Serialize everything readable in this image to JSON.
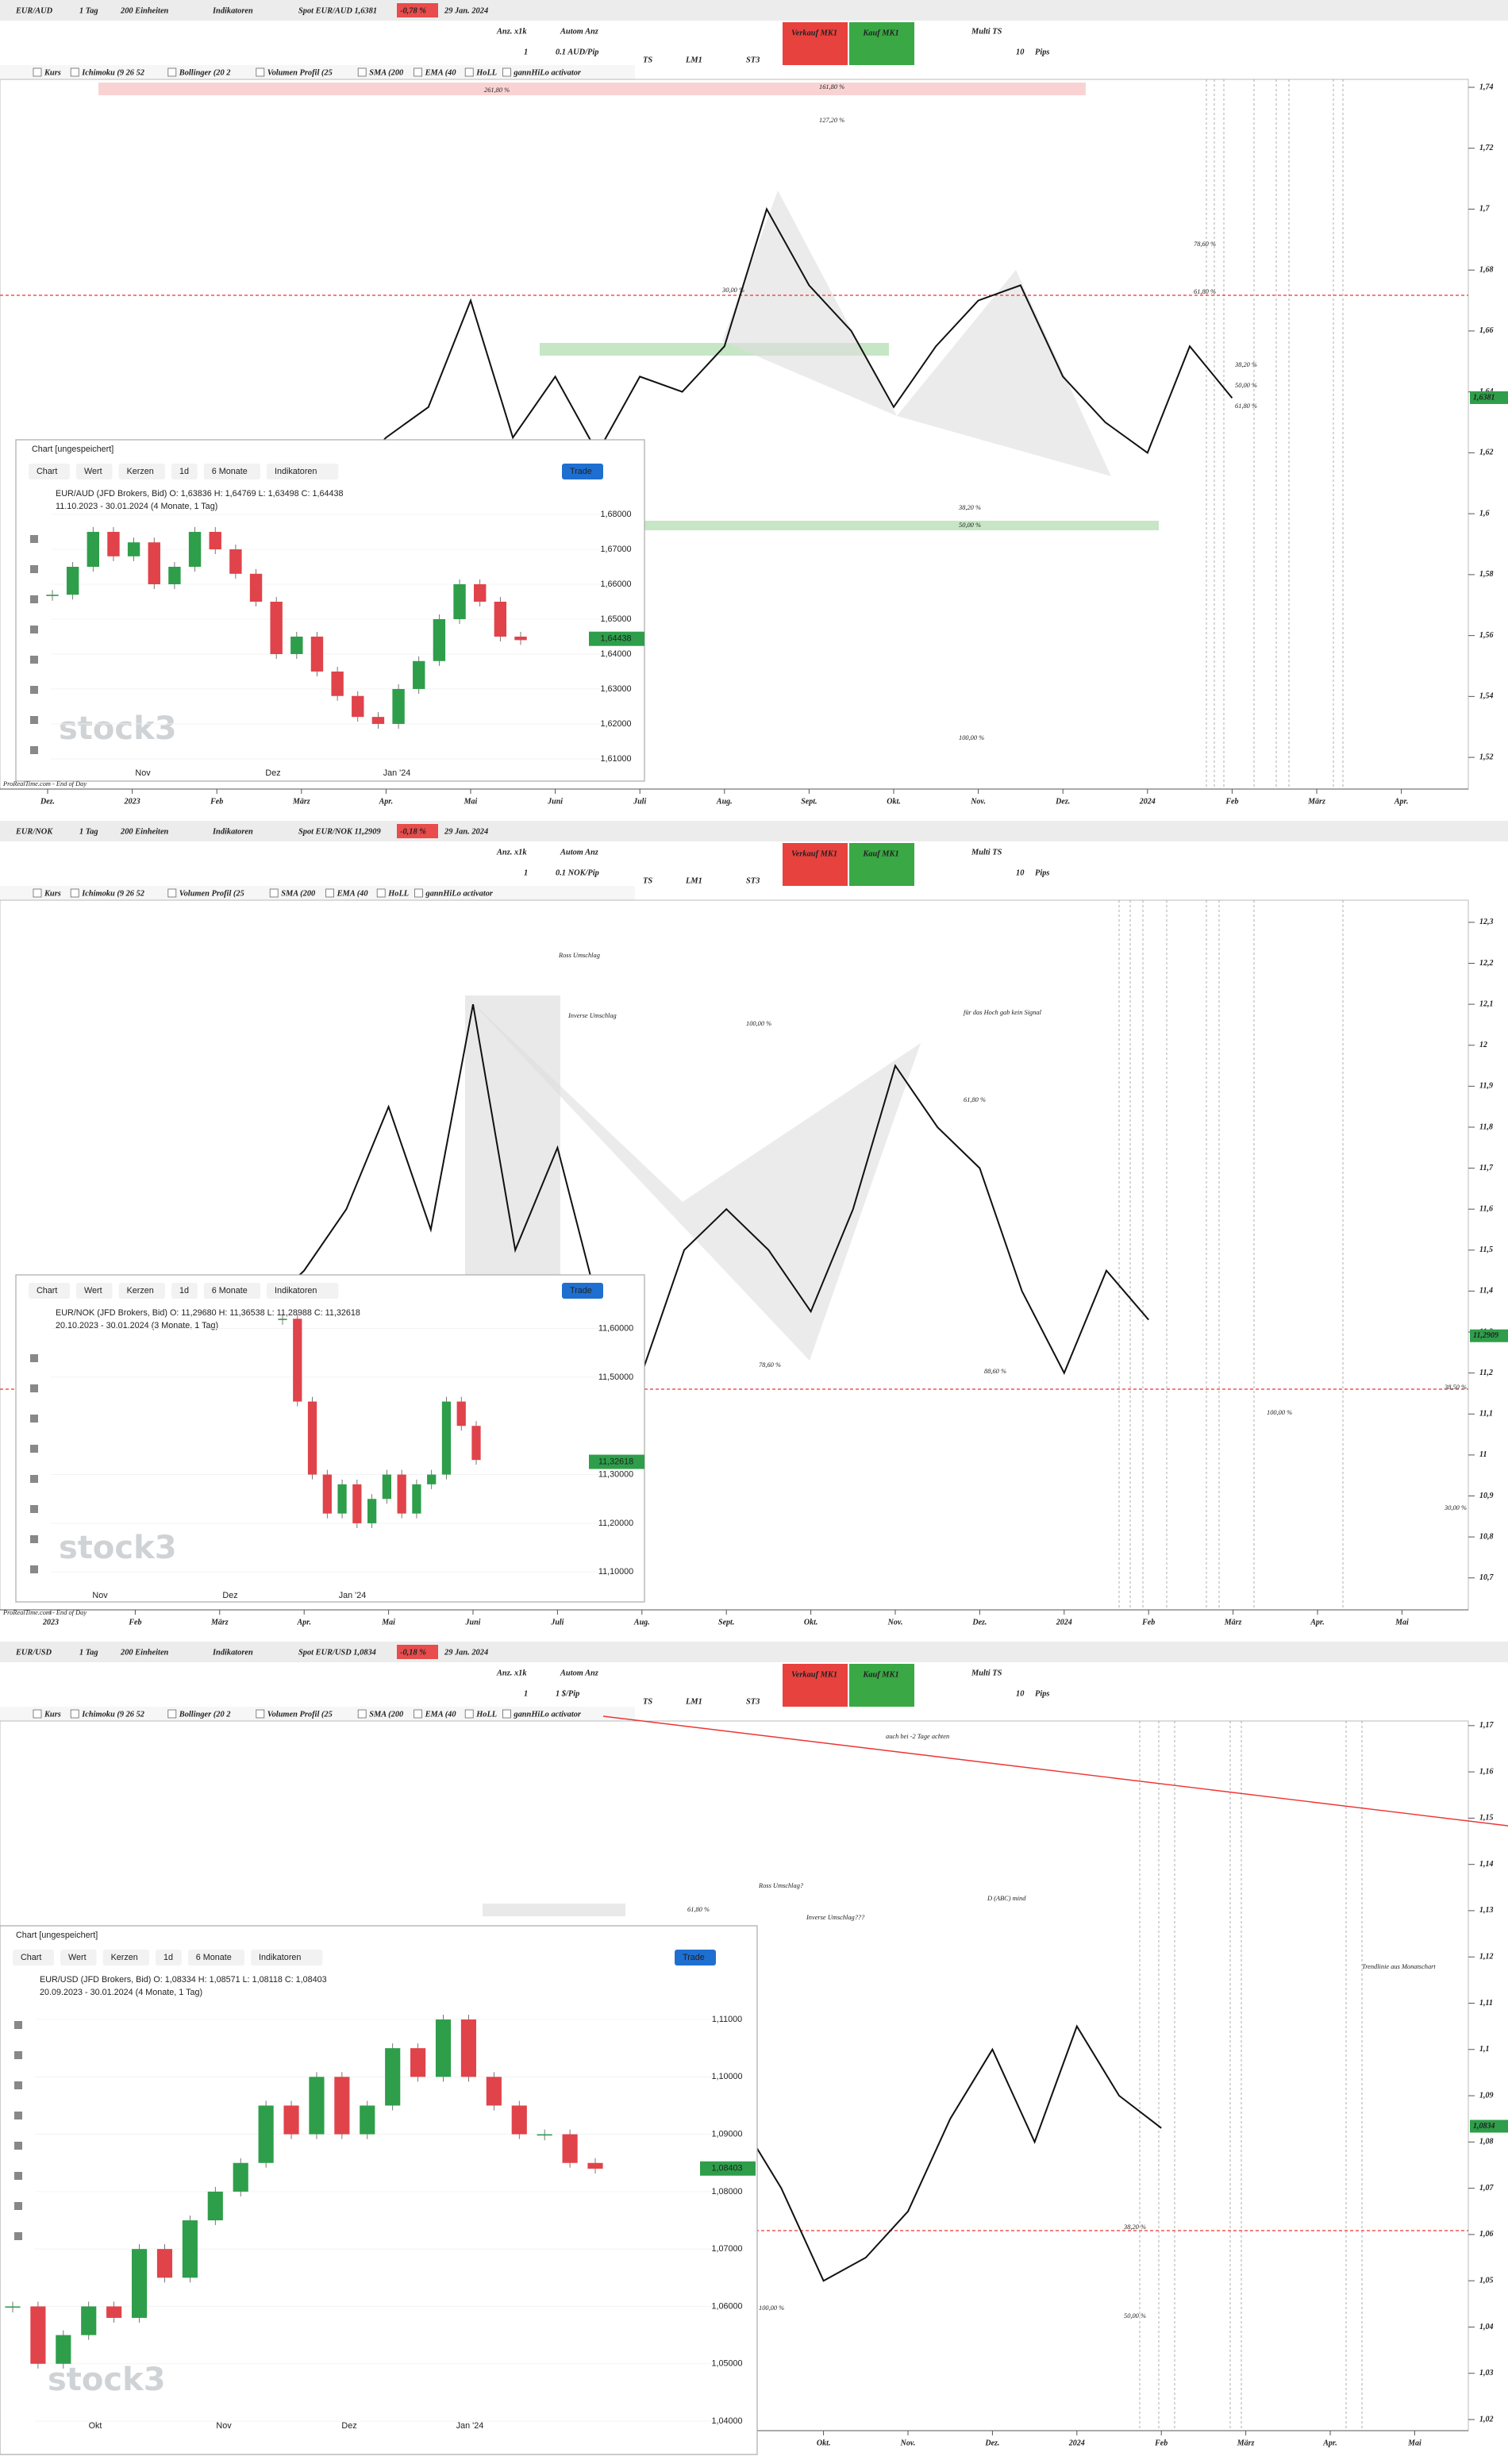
{
  "panels": [
    {
      "toolbar": {
        "symbol": "EUR/AUD",
        "interval": "1 Tag",
        "units": "200 Einheiten",
        "indicators": "Indikatoren",
        "spot": "Spot EUR/AUD 1,6381",
        "change": "-0,78 %",
        "date": "29 Jan. 2024"
      },
      "trade": [
        "Anz. x1k",
        "Autom Anz",
        "1",
        "0.1 AUD/Pip",
        "TS",
        "LM1",
        "ST3",
        "Verkauf MK1",
        "Kauf MK1",
        "Multi TS",
        "10",
        "Pips"
      ],
      "indicators": [
        "Kurs",
        "Ichimoku (9 26 52",
        "Bollinger (20 2",
        "Volumen Profil (25",
        "SMA (200",
        "EMA (40",
        "HoLL",
        "gannHiLo activator"
      ],
      "chart": {
        "ylim": [
          1.5096,
          1.7426
        ],
        "yticks": [
          {
            "value": 1.74,
            "label": "1,74"
          },
          {
            "value": 1.72,
            "label": "1,72"
          },
          {
            "value": 1.7,
            "label": "1,7"
          },
          {
            "value": 1.68,
            "label": "1,68"
          },
          {
            "value": 1.66,
            "label": "1,66"
          },
          {
            "value": 1.64,
            "label": "1,64"
          },
          {
            "value": 1.62,
            "label": "1,62"
          },
          {
            "value": 1.6,
            "label": "1,6"
          },
          {
            "value": 1.58,
            "label": "1,58"
          },
          {
            "value": 1.56,
            "label": "1,56"
          },
          {
            "value": 1.54,
            "label": "1,54"
          },
          {
            "value": 1.52,
            "label": "1,52"
          }
        ],
        "xlabels": [
          "Dez.",
          "2023",
          "Feb",
          "März",
          "Apr.",
          "Mai",
          "Juni",
          "Juli",
          "Aug.",
          "Sept.",
          "Okt.",
          "Nov.",
          "Dez.",
          "2024",
          "Feb",
          "März",
          "Apr."
        ],
        "close": [
          1.555,
          1.545,
          1.54,
          1.56,
          1.575,
          1.59,
          1.6,
          1.61,
          1.625,
          1.635,
          1.67,
          1.625,
          1.645,
          1.62,
          1.645,
          1.64,
          1.655,
          1.7,
          1.675,
          1.66,
          1.635,
          1.655,
          1.67,
          1.675,
          1.645,
          1.63,
          1.62,
          1.655,
          1.638,
          null,
          null,
          null,
          null
        ],
        "last": {
          "value": 1.6381,
          "label": "1,6381"
        },
        "annotations": [
          "30,00 %",
          "78,60 %",
          "61,80 %",
          "38,20 %",
          "50,00 %",
          "61,80 %",
          "38,20 %",
          "50,00 %",
          "100,00 %",
          "261,80 %",
          "161,80 %",
          "127,20 %"
        ],
        "footer": "ProRealTime.com - End of Day"
      },
      "inset": {
        "title": "Chart [ungespeichert]",
        "buttons": [
          "Chart",
          "Wert",
          "Kerzen",
          "1d",
          "6 Monate",
          "Indikatoren",
          "Trade"
        ],
        "info": "EUR/AUD (JFD Brokers, Bid) O: 1,63836 H: 1,64769 L: 1,63498 C: 1,64438",
        "range": "11.10.2023 - 30.01.2024 (4 Monate, 1 Tag)",
        "ylim": [
          1.6068,
          1.6841
        ],
        "yticks": [
          {
            "value": 1.68,
            "label": "1,68000"
          },
          {
            "value": 1.67,
            "label": "1,67000"
          },
          {
            "value": 1.66,
            "label": "1,66000"
          },
          {
            "value": 1.65,
            "label": "1,65000"
          },
          {
            "value": 1.64,
            "label": "1,64000"
          },
          {
            "value": 1.63,
            "label": "1,63000"
          },
          {
            "value": 1.62,
            "label": "1,62000"
          },
          {
            "value": 1.61,
            "label": "1,61000"
          }
        ],
        "xlabels": [
          "Nov",
          "Dez",
          "Jan '24"
        ],
        "close": [
          1.657,
          1.665,
          1.675,
          1.668,
          1.672,
          1.66,
          1.665,
          1.675,
          1.67,
          1.663,
          1.655,
          1.64,
          1.645,
          1.635,
          1.628,
          1.622,
          1.62,
          1.63,
          1.638,
          1.65,
          1.66,
          1.655,
          1.645,
          1.644
        ],
        "last": {
          "value": 1.64438,
          "label": "1,64438"
        },
        "watermark": "stock3"
      }
    },
    {
      "toolbar": {
        "symbol": "EUR/NOK",
        "interval": "1 Tag",
        "units": "200 Einheiten",
        "indicators": "Indikatoren",
        "spot": "Spot EUR/NOK 11,2909",
        "change": "-0,18 %",
        "date": "29 Jan. 2024"
      },
      "trade": [
        "Anz. x1k",
        "Autom Anz",
        "1",
        "0.1 NOK/Pip",
        "TS",
        "LM1",
        "ST3",
        "Verkauf MK1",
        "Kauf MK1",
        "Multi TS",
        "10",
        "Pips"
      ],
      "indicators": [
        "Kurs",
        "Ichimoku (9 26 52",
        "Volumen Profil (25",
        "SMA (200",
        "EMA (40",
        "HoLL",
        "gannHiLo activator"
      ],
      "chart": {
        "ylim": [
          10.622,
          12.354
        ],
        "yticks": [
          {
            "value": 12.3,
            "label": "12,3"
          },
          {
            "value": 12.2,
            "label": "12,2"
          },
          {
            "value": 12.1,
            "label": "12,1"
          },
          12,
          {
            "value": 11.9,
            "label": "11,9"
          },
          {
            "value": 11.8,
            "label": "11,8"
          },
          {
            "value": 11.7,
            "label": "11,7"
          },
          {
            "value": 11.6,
            "label": "11,6"
          },
          {
            "value": 11.5,
            "label": "11,5"
          },
          {
            "value": 11.4,
            "label": "11,4"
          },
          {
            "value": 11.3,
            "label": "11,3"
          },
          {
            "value": 11.2,
            "label": "11,2"
          },
          {
            "value": 11.1,
            "label": "11,1"
          },
          11,
          {
            "value": 10.9,
            "label": "10,9"
          },
          {
            "value": 10.8,
            "label": "10,8"
          },
          {
            "value": 10.7,
            "label": "10,7"
          }
        ],
        "xlabels": [
          "2023",
          "Feb",
          "März",
          "Apr.",
          "Mai",
          "Juni",
          "Juli",
          "Aug.",
          "Sept.",
          "Okt.",
          "Nov.",
          "Dez.",
          "2024",
          "Feb",
          "März",
          "Apr.",
          "Mai"
        ],
        "close": [
          11.2,
          11.3,
          11.2,
          11.3,
          11.4,
          11.35,
          11.45,
          11.6,
          11.85,
          11.55,
          12.1,
          11.5,
          11.75,
          11.35,
          11.2,
          11.5,
          11.6,
          11.5,
          11.35,
          11.6,
          11.95,
          11.8,
          11.7,
          11.4,
          11.2,
          11.45,
          11.33,
          null,
          null,
          null,
          null,
          null,
          null
        ],
        "last": {
          "value": 11.2909,
          "label": "11,2909"
        },
        "annotations": [
          "Ross Umschlag",
          "Inverse Umschlag",
          "für das Hoch gab kein Signal",
          "100,00 %",
          "61,80 %",
          "88,60 %",
          "78,60 %",
          "38,50 %",
          "100,00 %",
          "30,00 %"
        ],
        "footer": "ProRealTime.com - End of Day"
      },
      "inset": {
        "buttons": [
          "Chart",
          "Wert",
          "Kerzen",
          "1d",
          "6 Monate",
          "Indikatoren",
          "Trade"
        ],
        "info": "EUR/NOK (JFD Brokers, Bid) O: 11,29680 H: 11,36538 L: 11,28988 C: 11,32618",
        "range": "20.10.2023 - 30.01.2024 (3 Monate, 1 Tag)",
        "ylim": [
          11.045,
          11.6645
        ],
        "yticks": [
          {
            "value": 11.6,
            "label": "11,60000"
          },
          {
            "value": 11.5,
            "label": "11,50000"
          },
          {
            "value": 11.3,
            "label": "11,30000"
          },
          {
            "value": 11.2,
            "label": "11,20000"
          },
          {
            "value": 11.1,
            "label": "11,10000"
          }
        ],
        "xlabels": [
          "Nov",
          "Dez",
          "Jan '24"
        ],
        "close": [
          11.62,
          11.45,
          11.3,
          11.22,
          11.28,
          11.2,
          11.25,
          11.3,
          11.22,
          11.28,
          11.3,
          11.45,
          11.4,
          11.33
        ],
        "last": {
          "value": 11.32618,
          "label": "11,32618"
        },
        "watermark": "stock3"
      }
    },
    {
      "toolbar": {
        "symbol": "EUR/USD",
        "interval": "1 Tag",
        "units": "200 Einheiten",
        "indicators": "Indikatoren",
        "spot": "Spot EUR/USD 1,0834",
        "change": "-0,18 %",
        "date": "29 Jan. 2024"
      },
      "trade": [
        "Anz. x1k",
        "Autom Anz",
        "1",
        "1 $/Pip",
        "TS",
        "LM1",
        "ST3",
        "Verkauf MK1",
        "Kauf MK1",
        "Multi TS",
        "10",
        "Pips"
      ],
      "indicators": [
        "Kurs",
        "Ichimoku (9 26 52",
        "Bollinger (20 2",
        "Volumen Profil (25",
        "SMA (200",
        "EMA (40",
        "HoLL",
        "gannHiLo activator"
      ],
      "chart": {
        "ylim": [
          1.0176,
          1.171
        ],
        "yticks": [
          {
            "value": 1.17,
            "label": "1,17"
          },
          {
            "value": 1.16,
            "label": "1,16"
          },
          {
            "value": 1.15,
            "label": "1,15"
          },
          {
            "value": 1.14,
            "label": "1,14"
          },
          {
            "value": 1.13,
            "label": "1,13"
          },
          {
            "value": 1.12,
            "label": "1,12"
          },
          {
            "value": 1.11,
            "label": "1,11"
          },
          {
            "value": 1.1,
            "label": "1,1"
          },
          {
            "value": 1.09,
            "label": "1,09"
          },
          {
            "value": 1.08,
            "label": "1,08"
          },
          {
            "value": 1.07,
            "label": "1,07"
          },
          {
            "value": 1.06,
            "label": "1,06"
          },
          {
            "value": 1.05,
            "label": "1,05"
          },
          {
            "value": 1.04,
            "label": "1,04"
          },
          {
            "value": 1.03,
            "label": "1,03"
          },
          {
            "value": 1.02,
            "label": "1,02"
          }
        ],
        "xlabels": [
          "2023",
          "Feb",
          "März",
          "Apr.",
          "Mai",
          "Juni",
          "Juli",
          "Aug.",
          "Sept.",
          "Okt.",
          "Nov.",
          "Dez.",
          "2024",
          "Feb",
          "März",
          "Apr.",
          "Mai"
        ],
        "close": [
          1.07,
          1.075,
          1.08,
          1.09,
          1.07,
          1.09,
          1.095,
          1.085,
          1.1,
          1.08,
          1.09,
          1.08,
          1.09,
          1.1,
          1.12,
          1.09,
          1.085,
          1.07,
          1.05,
          1.055,
          1.065,
          1.085,
          1.1,
          1.08,
          1.105,
          1.09,
          1.083,
          null,
          null,
          null,
          null,
          null,
          null
        ],
        "last": {
          "value": 1.0834,
          "label": "1,0834"
        },
        "annotations": [
          "Ross Umschlag?",
          "Inverse Umschlag???",
          "D (ABC) mind",
          "auch bei -2 Tage achten",
          "Trendlinie aus Monatschart",
          "100,00 %",
          "61,80 %",
          "38,20 %",
          "50,00 %"
        ]
      },
      "inset": {
        "title": "Chart [ungespeichert]",
        "buttons": [
          "Chart",
          "Wert",
          "Kerzen",
          "1d",
          "6 Monate",
          "Indikatoren",
          "Trade"
        ],
        "info": "EUR/USD (JFD Brokers, Bid) O: 1,08334 H: 1,08571 L: 1,08118 C: 1,08403",
        "range": "20.09.2023 - 30.01.2024 (4 Monate, 1 Tag)",
        "ylim": [
          1.0389,
          1.1136
        ],
        "yticks": [
          {
            "value": 1.11,
            "label": "1,11000"
          },
          {
            "value": 1.1,
            "label": "1,10000"
          },
          {
            "value": 1.09,
            "label": "1,09000"
          },
          {
            "value": 1.08,
            "label": "1,08000"
          },
          {
            "value": 1.07,
            "label": "1,07000"
          },
          {
            "value": 1.06,
            "label": "1,06000"
          },
          {
            "value": 1.05,
            "label": "1,05000"
          },
          {
            "value": 1.04,
            "label": "1,04000"
          }
        ],
        "xlabels": [
          "Okt",
          "Nov",
          "Dez",
          "Jan '24"
        ],
        "close": [
          1.06,
          1.05,
          1.055,
          1.06,
          1.058,
          1.07,
          1.065,
          1.075,
          1.08,
          1.085,
          1.095,
          1.09,
          1.1,
          1.09,
          1.095,
          1.105,
          1.1,
          1.11,
          1.1,
          1.095,
          1.09,
          1.09,
          1.085,
          1.084
        ],
        "last": {
          "value": 1.08403,
          "label": "1,08403"
        },
        "watermark": "stock3"
      }
    }
  ]
}
